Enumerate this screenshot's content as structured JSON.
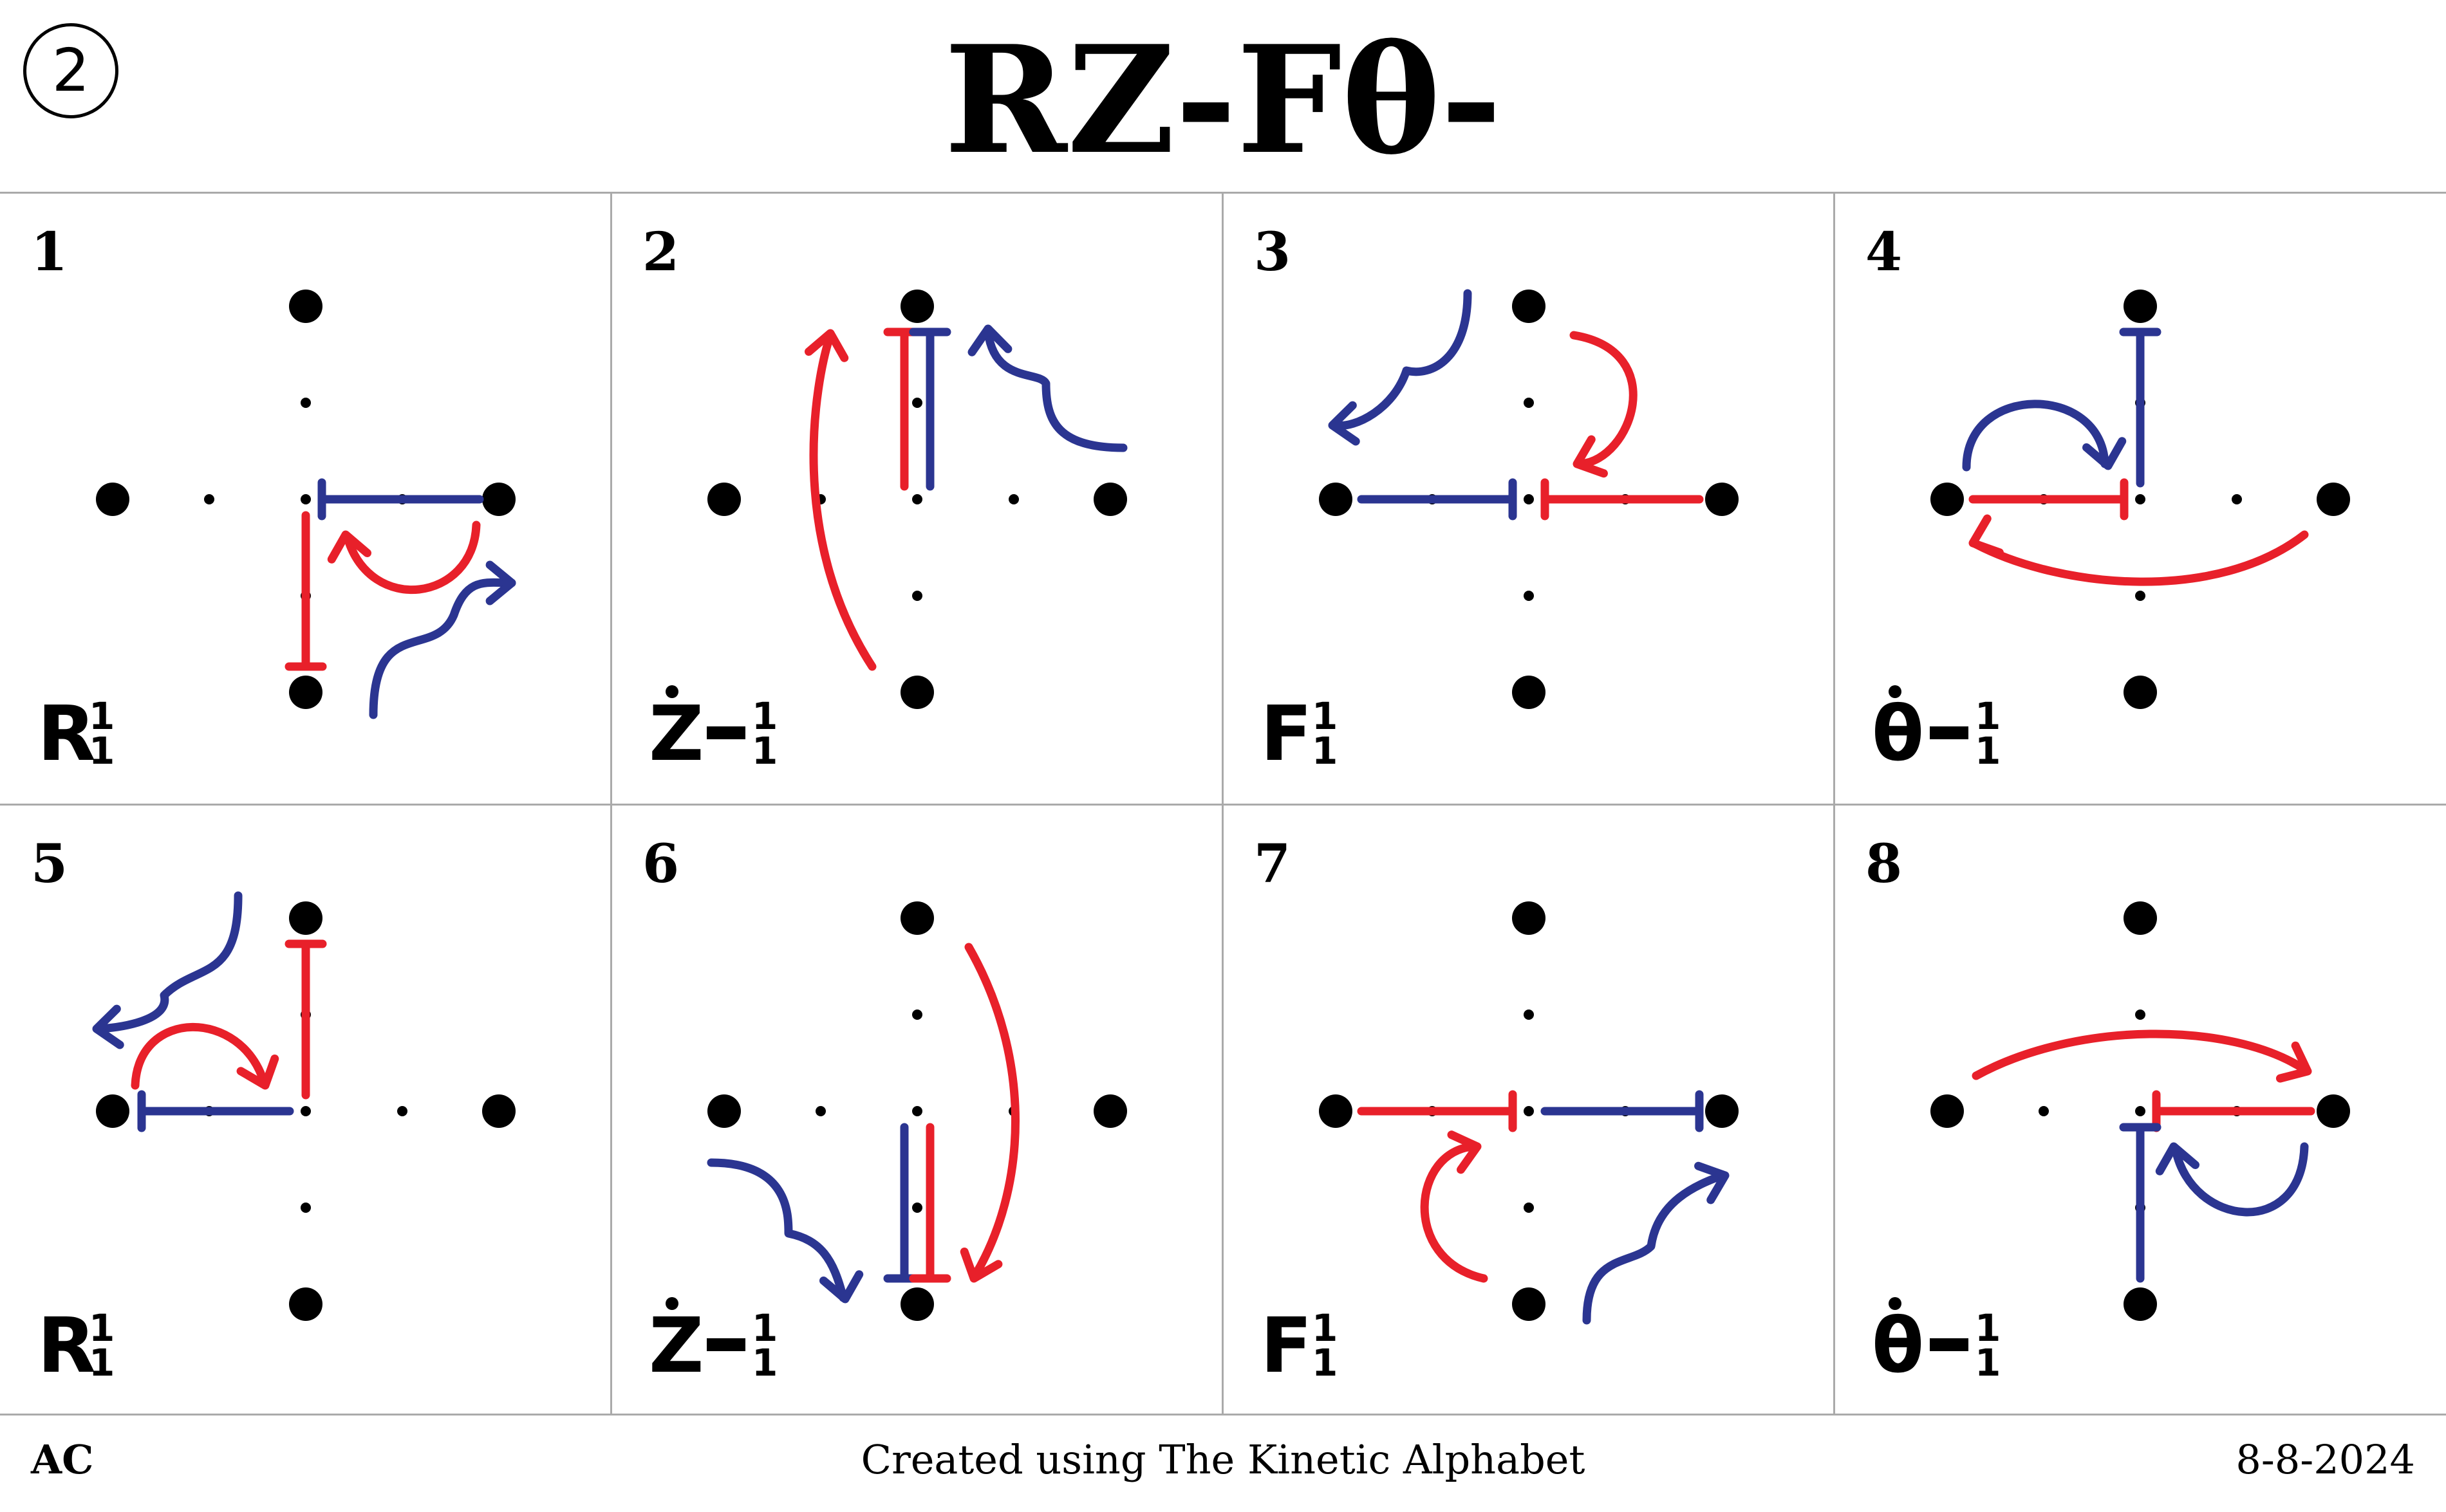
{
  "header": {
    "badge": "2",
    "title": "RZ-Fθ-"
  },
  "colors": {
    "red": "#e8202a",
    "blue": "#2b3591",
    "grid": "#aaaaaa",
    "dot": "#000000"
  },
  "cells": [
    {
      "number": "1",
      "label_main": "R",
      "label_dot": false,
      "label_dash": false,
      "sup": "1",
      "sub": "1"
    },
    {
      "number": "2",
      "label_main": "Z",
      "label_dot": true,
      "label_dash": true,
      "sup": "1",
      "sub": "1"
    },
    {
      "number": "3",
      "label_main": "F",
      "label_dot": false,
      "label_dash": false,
      "sup": "1",
      "sub": "1"
    },
    {
      "number": "4",
      "label_main": "θ",
      "label_dot": true,
      "label_dash": true,
      "sup": "1",
      "sub": "1"
    },
    {
      "number": "5",
      "label_main": "R",
      "label_dot": false,
      "label_dash": false,
      "sup": "1",
      "sub": "1"
    },
    {
      "number": "6",
      "label_main": "Z",
      "label_dot": true,
      "label_dash": true,
      "sup": "1",
      "sub": "1"
    },
    {
      "number": "7",
      "label_main": "F",
      "label_dot": false,
      "label_dash": false,
      "sup": "1",
      "sub": "1"
    },
    {
      "number": "8",
      "label_main": "θ",
      "label_dot": true,
      "label_dash": true,
      "sup": "1",
      "sub": "1"
    }
  ],
  "footer": {
    "left": "AC",
    "center": "Created using The Kinetic Alphabet",
    "right": "8-8-2024"
  }
}
